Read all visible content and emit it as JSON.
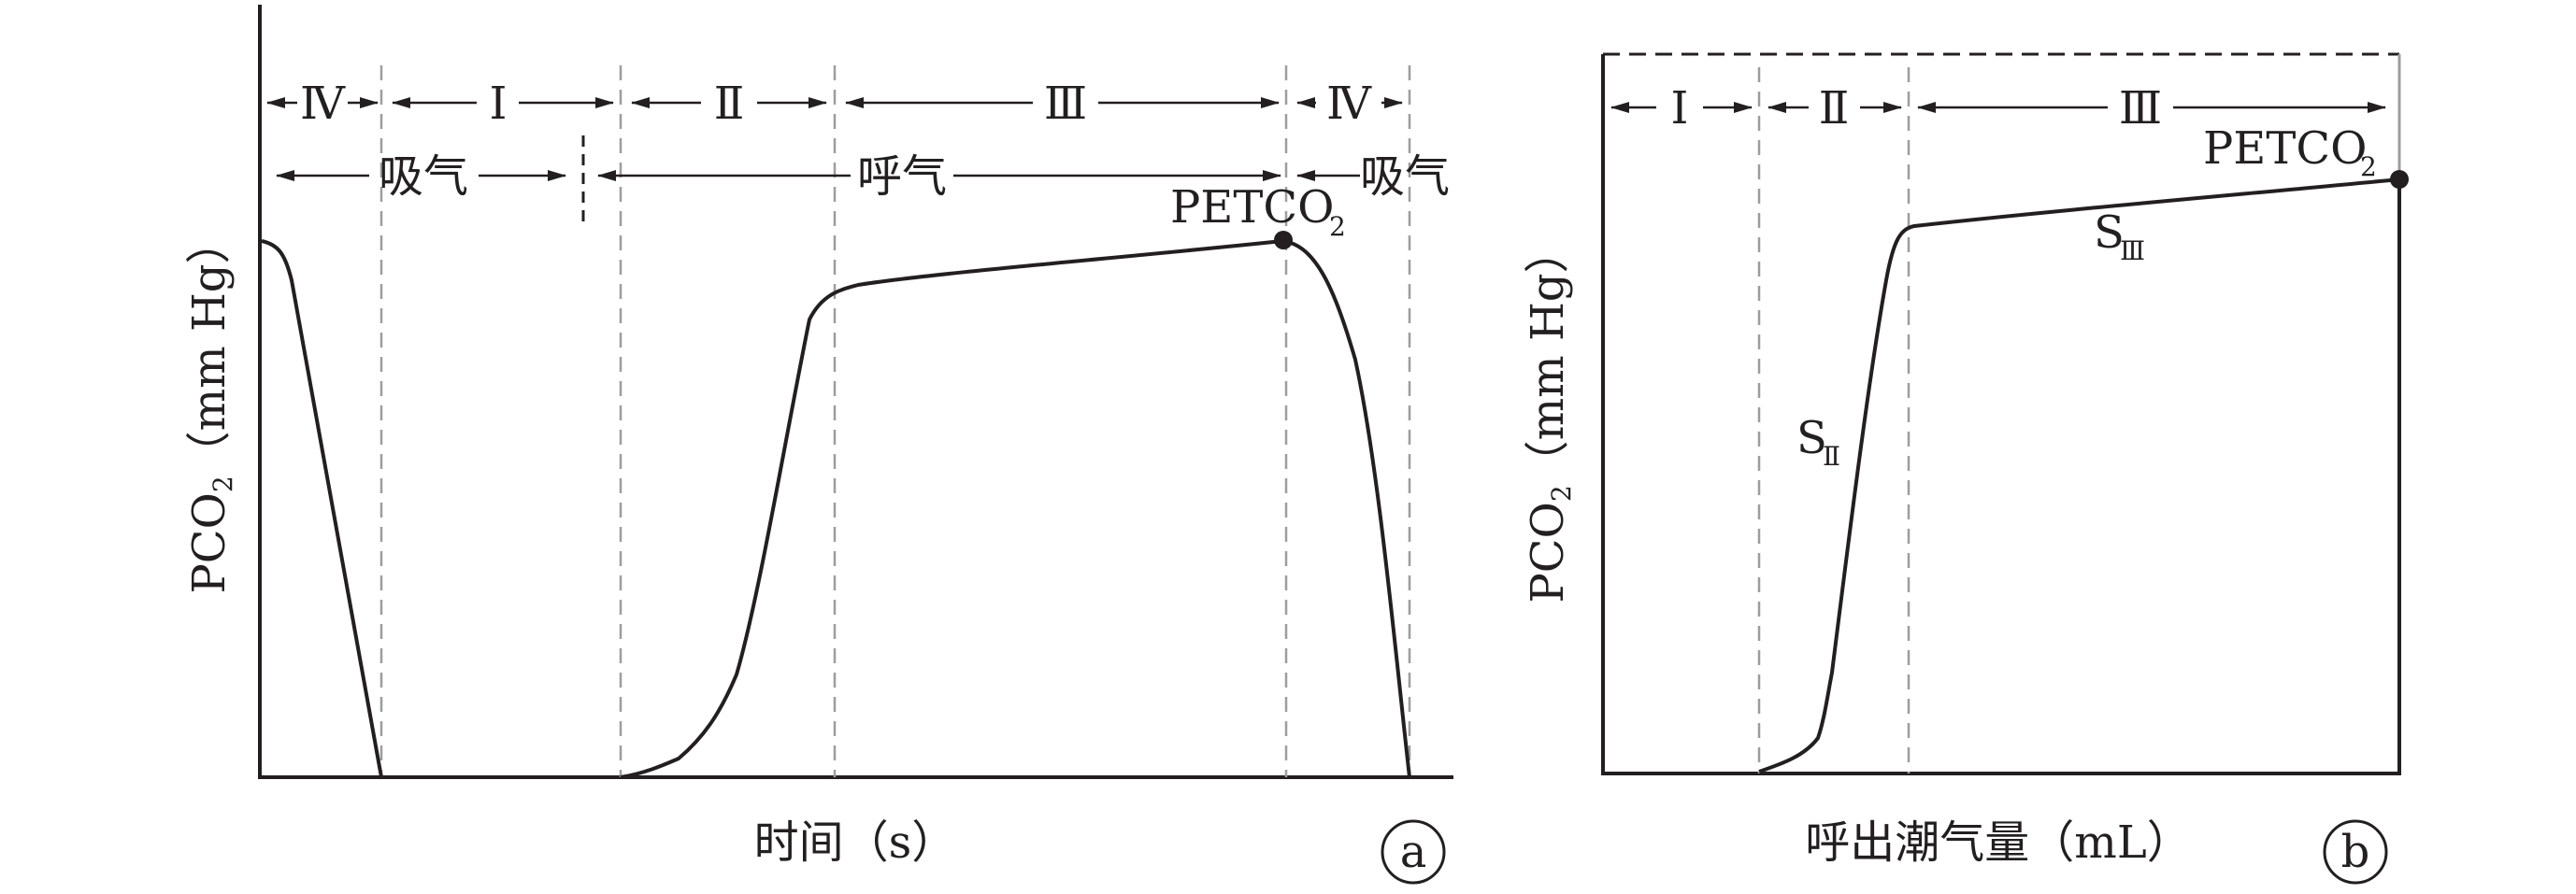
{
  "panel_a": {
    "y_label": "PCO",
    "y_label_sub": "2",
    "y_label_unit": "（mm Hg）",
    "x_label": "时间（s）",
    "badge": "a",
    "phases": [
      "Ⅳ",
      "Ⅰ",
      "Ⅱ",
      "Ⅲ",
      "Ⅳ"
    ],
    "cycle": [
      "吸气",
      "呼气",
      "吸气"
    ],
    "point_label": "PETCO",
    "point_label_sub": "2"
  },
  "panel_b": {
    "y_label": "PCO",
    "y_label_sub": "2",
    "y_label_unit": "（mm Hg）",
    "x_label": "呼出潮气量（mL）",
    "badge": "b",
    "phases": [
      "Ⅰ",
      "Ⅱ",
      "Ⅲ"
    ],
    "point_label": "PETCO",
    "point_label_sub": "2",
    "slope_2": "S",
    "slope_2_sub": "Ⅱ",
    "slope_3": "S",
    "slope_3_sub": "Ⅲ"
  },
  "colors": {
    "ink": "#231f20",
    "guide": "#9d9d9d"
  }
}
